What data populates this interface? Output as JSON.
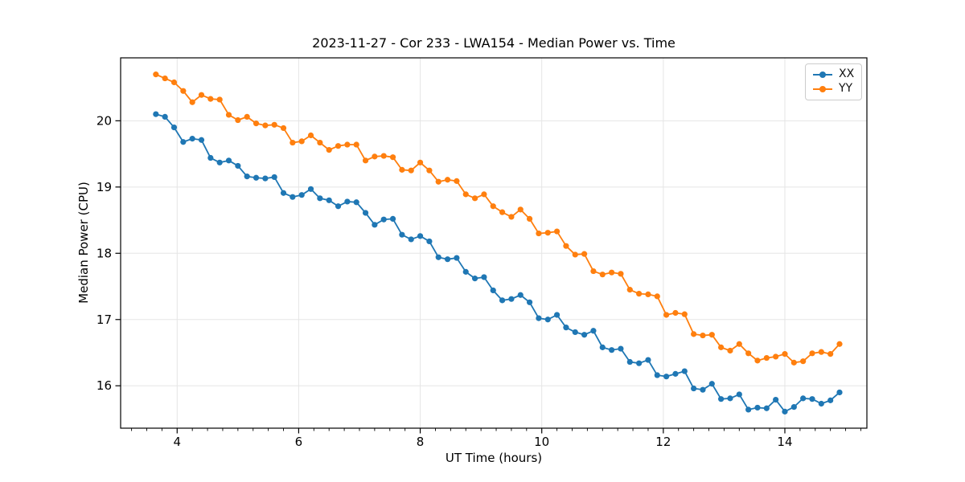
{
  "figure": {
    "background": "#ffffff",
    "grid_color": "#e5e5e5",
    "spine_color": "#000000"
  },
  "chart_data": {
    "type": "line",
    "title": "2023-11-27 - Cor 233 - LWA154 - Median Power vs. Time",
    "xlabel": "UT Time (hours)",
    "ylabel": "Median Power (CPU)",
    "xlim": [
      3.07,
      15.35
    ],
    "ylim": [
      15.36,
      20.95
    ],
    "xticks": [
      4,
      6,
      8,
      10,
      12,
      14
    ],
    "yticks": [
      16,
      17,
      18,
      19,
      20
    ],
    "minor_xtick_step": 0.25,
    "grid": true,
    "legend_position": "upper right",
    "marker": "circle",
    "x": [
      3.65,
      3.8,
      3.95,
      4.1,
      4.25,
      4.4,
      4.55,
      4.7,
      4.85,
      5.0,
      5.15,
      5.3,
      5.45,
      5.6,
      5.75,
      5.9,
      6.05,
      6.2,
      6.35,
      6.5,
      6.65,
      6.8,
      6.95,
      7.1,
      7.25,
      7.4,
      7.55,
      7.7,
      7.85,
      8.0,
      8.15,
      8.3,
      8.45,
      8.6,
      8.75,
      8.9,
      9.05,
      9.2,
      9.35,
      9.5,
      9.65,
      9.8,
      9.95,
      10.1,
      10.25,
      10.4,
      10.55,
      10.7,
      10.85,
      11.0,
      11.15,
      11.3,
      11.45,
      11.6,
      11.75,
      11.9,
      12.05,
      12.2,
      12.35,
      12.5,
      12.65,
      12.8,
      12.95,
      13.1,
      13.25,
      13.4,
      13.55,
      13.7,
      13.85,
      14.0,
      14.15,
      14.3,
      14.45,
      14.6,
      14.75,
      14.9
    ],
    "series": [
      {
        "name": "XX",
        "color": "#1f77b4",
        "values": [
          20.1,
          20.06,
          19.9,
          19.68,
          19.73,
          19.71,
          19.44,
          19.37,
          19.4,
          19.32,
          19.16,
          19.14,
          19.13,
          19.15,
          18.91,
          18.85,
          18.88,
          18.97,
          18.83,
          18.8,
          18.71,
          18.78,
          18.77,
          18.61,
          18.43,
          18.51,
          18.52,
          18.28,
          18.21,
          18.26,
          18.18,
          17.94,
          17.91,
          17.93,
          17.72,
          17.62,
          17.64,
          17.44,
          17.29,
          17.31,
          17.37,
          17.26,
          17.02,
          17.0,
          17.07,
          16.88,
          16.81,
          16.77,
          16.83,
          16.58,
          16.54,
          16.56,
          16.36,
          16.34,
          16.39,
          16.16,
          16.14,
          16.18,
          16.22,
          15.96,
          15.94,
          16.03,
          15.8,
          15.81,
          15.87,
          15.64,
          15.67,
          15.66,
          15.79,
          15.61,
          15.68,
          15.81,
          15.8,
          15.73,
          15.78,
          15.9
        ]
      },
      {
        "name": "YY",
        "color": "#ff7f0e",
        "values": [
          20.7,
          20.64,
          20.58,
          20.45,
          20.28,
          20.39,
          20.33,
          20.32,
          20.09,
          20.01,
          20.06,
          19.96,
          19.93,
          19.94,
          19.89,
          19.67,
          19.69,
          19.78,
          19.67,
          19.56,
          19.62,
          19.64,
          19.64,
          19.4,
          19.46,
          19.47,
          19.45,
          19.26,
          19.25,
          19.37,
          19.25,
          19.08,
          19.11,
          19.09,
          18.89,
          18.83,
          18.89,
          18.71,
          18.62,
          18.55,
          18.66,
          18.52,
          18.3,
          18.31,
          18.33,
          18.11,
          17.98,
          17.99,
          17.73,
          17.68,
          17.71,
          17.69,
          17.45,
          17.39,
          17.38,
          17.35,
          17.07,
          17.1,
          17.08,
          16.78,
          16.76,
          16.77,
          16.58,
          16.53,
          16.63,
          16.49,
          16.38,
          16.42,
          16.44,
          16.48,
          16.35,
          16.37,
          16.49,
          16.51,
          16.48,
          16.63
        ]
      }
    ]
  }
}
